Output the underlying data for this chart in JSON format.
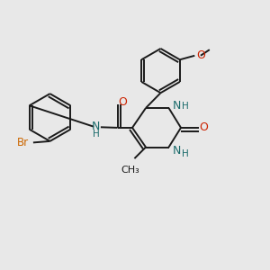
{
  "background_color": "#e8e8e8",
  "bond_color": "#1a1a1a",
  "nitrogen_color": "#1a6b6b",
  "oxygen_color": "#cc2200",
  "bromine_color": "#cc6600",
  "figsize": [
    3.0,
    3.0
  ],
  "dpi": 100,
  "xlim": [
    0,
    1
  ],
  "ylim": [
    0,
    1
  ]
}
